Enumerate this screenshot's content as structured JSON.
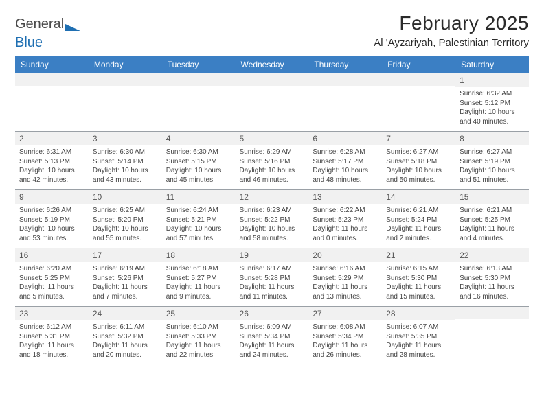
{
  "logo": {
    "word1": "General",
    "word2": "Blue",
    "tri_color": "#1f6fb2"
  },
  "title": "February 2025",
  "location": "Al 'Ayzariyah, Palestinian Territory",
  "header_bg": "#3b7fc4",
  "header_fg": "#ffffff",
  "daynum_bg": "#f1f1f1",
  "days": [
    "Sunday",
    "Monday",
    "Tuesday",
    "Wednesday",
    "Thursday",
    "Friday",
    "Saturday"
  ],
  "weeks": [
    [
      null,
      null,
      null,
      null,
      null,
      null,
      {
        "n": "1",
        "sr": "Sunrise: 6:32 AM",
        "ss": "Sunset: 5:12 PM",
        "dl1": "Daylight: 10 hours",
        "dl2": "and 40 minutes."
      }
    ],
    [
      {
        "n": "2",
        "sr": "Sunrise: 6:31 AM",
        "ss": "Sunset: 5:13 PM",
        "dl1": "Daylight: 10 hours",
        "dl2": "and 42 minutes."
      },
      {
        "n": "3",
        "sr": "Sunrise: 6:30 AM",
        "ss": "Sunset: 5:14 PM",
        "dl1": "Daylight: 10 hours",
        "dl2": "and 43 minutes."
      },
      {
        "n": "4",
        "sr": "Sunrise: 6:30 AM",
        "ss": "Sunset: 5:15 PM",
        "dl1": "Daylight: 10 hours",
        "dl2": "and 45 minutes."
      },
      {
        "n": "5",
        "sr": "Sunrise: 6:29 AM",
        "ss": "Sunset: 5:16 PM",
        "dl1": "Daylight: 10 hours",
        "dl2": "and 46 minutes."
      },
      {
        "n": "6",
        "sr": "Sunrise: 6:28 AM",
        "ss": "Sunset: 5:17 PM",
        "dl1": "Daylight: 10 hours",
        "dl2": "and 48 minutes."
      },
      {
        "n": "7",
        "sr": "Sunrise: 6:27 AM",
        "ss": "Sunset: 5:18 PM",
        "dl1": "Daylight: 10 hours",
        "dl2": "and 50 minutes."
      },
      {
        "n": "8",
        "sr": "Sunrise: 6:27 AM",
        "ss": "Sunset: 5:19 PM",
        "dl1": "Daylight: 10 hours",
        "dl2": "and 51 minutes."
      }
    ],
    [
      {
        "n": "9",
        "sr": "Sunrise: 6:26 AM",
        "ss": "Sunset: 5:19 PM",
        "dl1": "Daylight: 10 hours",
        "dl2": "and 53 minutes."
      },
      {
        "n": "10",
        "sr": "Sunrise: 6:25 AM",
        "ss": "Sunset: 5:20 PM",
        "dl1": "Daylight: 10 hours",
        "dl2": "and 55 minutes."
      },
      {
        "n": "11",
        "sr": "Sunrise: 6:24 AM",
        "ss": "Sunset: 5:21 PM",
        "dl1": "Daylight: 10 hours",
        "dl2": "and 57 minutes."
      },
      {
        "n": "12",
        "sr": "Sunrise: 6:23 AM",
        "ss": "Sunset: 5:22 PM",
        "dl1": "Daylight: 10 hours",
        "dl2": "and 58 minutes."
      },
      {
        "n": "13",
        "sr": "Sunrise: 6:22 AM",
        "ss": "Sunset: 5:23 PM",
        "dl1": "Daylight: 11 hours",
        "dl2": "and 0 minutes."
      },
      {
        "n": "14",
        "sr": "Sunrise: 6:21 AM",
        "ss": "Sunset: 5:24 PM",
        "dl1": "Daylight: 11 hours",
        "dl2": "and 2 minutes."
      },
      {
        "n": "15",
        "sr": "Sunrise: 6:21 AM",
        "ss": "Sunset: 5:25 PM",
        "dl1": "Daylight: 11 hours",
        "dl2": "and 4 minutes."
      }
    ],
    [
      {
        "n": "16",
        "sr": "Sunrise: 6:20 AM",
        "ss": "Sunset: 5:25 PM",
        "dl1": "Daylight: 11 hours",
        "dl2": "and 5 minutes."
      },
      {
        "n": "17",
        "sr": "Sunrise: 6:19 AM",
        "ss": "Sunset: 5:26 PM",
        "dl1": "Daylight: 11 hours",
        "dl2": "and 7 minutes."
      },
      {
        "n": "18",
        "sr": "Sunrise: 6:18 AM",
        "ss": "Sunset: 5:27 PM",
        "dl1": "Daylight: 11 hours",
        "dl2": "and 9 minutes."
      },
      {
        "n": "19",
        "sr": "Sunrise: 6:17 AM",
        "ss": "Sunset: 5:28 PM",
        "dl1": "Daylight: 11 hours",
        "dl2": "and 11 minutes."
      },
      {
        "n": "20",
        "sr": "Sunrise: 6:16 AM",
        "ss": "Sunset: 5:29 PM",
        "dl1": "Daylight: 11 hours",
        "dl2": "and 13 minutes."
      },
      {
        "n": "21",
        "sr": "Sunrise: 6:15 AM",
        "ss": "Sunset: 5:30 PM",
        "dl1": "Daylight: 11 hours",
        "dl2": "and 15 minutes."
      },
      {
        "n": "22",
        "sr": "Sunrise: 6:13 AM",
        "ss": "Sunset: 5:30 PM",
        "dl1": "Daylight: 11 hours",
        "dl2": "and 16 minutes."
      }
    ],
    [
      {
        "n": "23",
        "sr": "Sunrise: 6:12 AM",
        "ss": "Sunset: 5:31 PM",
        "dl1": "Daylight: 11 hours",
        "dl2": "and 18 minutes."
      },
      {
        "n": "24",
        "sr": "Sunrise: 6:11 AM",
        "ss": "Sunset: 5:32 PM",
        "dl1": "Daylight: 11 hours",
        "dl2": "and 20 minutes."
      },
      {
        "n": "25",
        "sr": "Sunrise: 6:10 AM",
        "ss": "Sunset: 5:33 PM",
        "dl1": "Daylight: 11 hours",
        "dl2": "and 22 minutes."
      },
      {
        "n": "26",
        "sr": "Sunrise: 6:09 AM",
        "ss": "Sunset: 5:34 PM",
        "dl1": "Daylight: 11 hours",
        "dl2": "and 24 minutes."
      },
      {
        "n": "27",
        "sr": "Sunrise: 6:08 AM",
        "ss": "Sunset: 5:34 PM",
        "dl1": "Daylight: 11 hours",
        "dl2": "and 26 minutes."
      },
      {
        "n": "28",
        "sr": "Sunrise: 6:07 AM",
        "ss": "Sunset: 5:35 PM",
        "dl1": "Daylight: 11 hours",
        "dl2": "and 28 minutes."
      },
      null
    ]
  ]
}
